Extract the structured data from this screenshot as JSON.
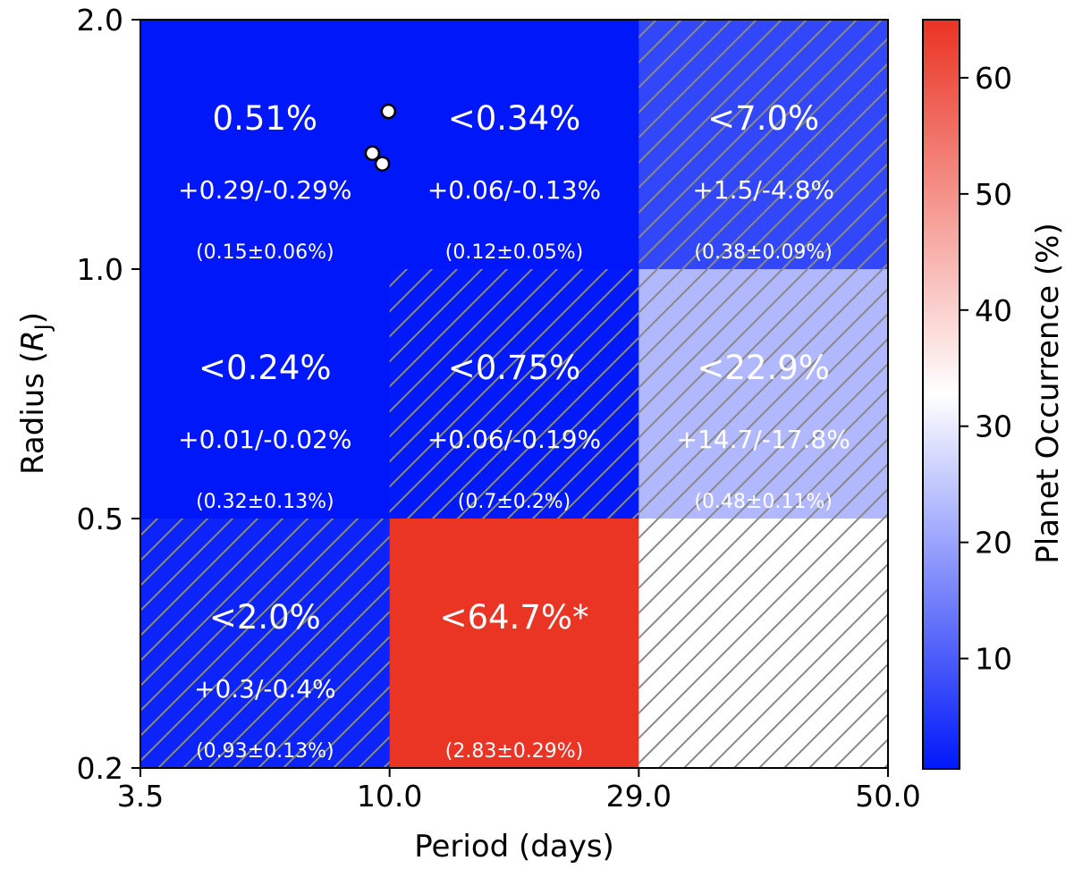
{
  "chart_data": {
    "type": "heatmap",
    "xlabel": "Period (days)",
    "ylabel": "Radius (R_J)",
    "ylabel_parts": {
      "prefix": "Radius (",
      "symbol": "R",
      "subscript": "J",
      "suffix": ")"
    },
    "x_edges": [
      "3.5",
      "10.0",
      "29.0",
      "50.0"
    ],
    "y_edges": [
      "0.2",
      "0.5",
      "1.0",
      "2.0"
    ],
    "colorbar": {
      "label": "Planet Occurrence (%)",
      "range": [
        0.5,
        65
      ],
      "ticks": [
        "10",
        "20",
        "30",
        "40",
        "50",
        "60"
      ],
      "tick_values": [
        10,
        20,
        30,
        40,
        50,
        60
      ],
      "colormap": "bwr",
      "colors": [
        "#0018f9",
        "#ffffff",
        "#ea3323"
      ]
    },
    "cells": [
      {
        "row": 0,
        "col": 0,
        "value": 0.51,
        "hatched": false,
        "main": "0.51%",
        "err": "+0.29/-0.29%",
        "base": "(0.15±0.06%)"
      },
      {
        "row": 0,
        "col": 1,
        "value": 0.34,
        "hatched": false,
        "main": "<0.34%",
        "err": "+0.06/-0.13%",
        "base": "(0.12±0.05%)"
      },
      {
        "row": 0,
        "col": 2,
        "value": 7.0,
        "hatched": true,
        "main": "<7.0%",
        "err": "+1.5/-4.8%",
        "base": "(0.38±0.09%)"
      },
      {
        "row": 1,
        "col": 0,
        "value": 0.24,
        "hatched": false,
        "main": "<0.24%",
        "err": "+0.01/-0.02%",
        "base": "(0.32±0.13%)"
      },
      {
        "row": 1,
        "col": 1,
        "value": 0.75,
        "hatched": true,
        "main": "<0.75%",
        "err": "+0.06/-0.19%",
        "base": "(0.7±0.2%)"
      },
      {
        "row": 1,
        "col": 2,
        "value": 22.9,
        "hatched": true,
        "main": "<22.9%",
        "err": "+14.7/-17.8%",
        "base": "(0.48±0.11%)"
      },
      {
        "row": 2,
        "col": 0,
        "value": 2.0,
        "hatched": true,
        "main": "<2.0%",
        "err": "+0.3/-0.4%",
        "base": "(0.93±0.13%)"
      },
      {
        "row": 2,
        "col": 1,
        "value": 64.7,
        "hatched": false,
        "main": "<64.7%*",
        "err": "",
        "base": "(2.83±0.29%)"
      },
      {
        "row": 2,
        "col": 2,
        "value": null,
        "hatched": true,
        "main": "",
        "err": "",
        "base": ""
      }
    ],
    "points": [
      {
        "period": 9.3,
        "radius": 1.38
      },
      {
        "period": 9.7,
        "radius": 1.34
      },
      {
        "period": 9.95,
        "radius": 1.55
      }
    ]
  }
}
